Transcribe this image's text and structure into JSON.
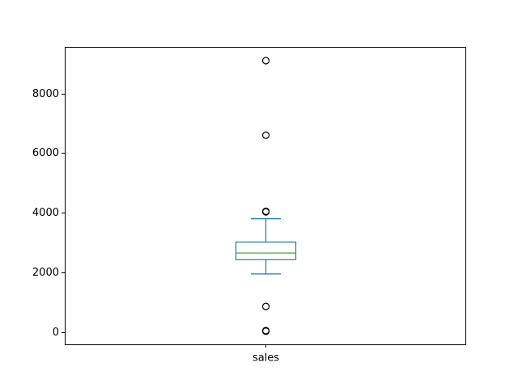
{
  "chart_data": {
    "type": "box",
    "categories": [
      "sales"
    ],
    "ylim": [
      -410,
      9560
    ],
    "y_ticks": [
      0,
      2000,
      4000,
      6000,
      8000
    ],
    "y_tick_labels": [
      "0",
      "2000",
      "4000",
      "6000",
      "8000"
    ],
    "boxes": [
      {
        "category": "sales",
        "whisker_low": 1950,
        "q1": 2430,
        "median": 2650,
        "q3": 3020,
        "whisker_high": 3800,
        "outliers": [
          9100,
          6600,
          4050,
          4030,
          860,
          50,
          30
        ]
      }
    ],
    "colors": {
      "box": "#1f77b4",
      "median": "#2ca02c",
      "outlier": "#000000",
      "axes": "#000000"
    },
    "grid": false,
    "legend": "none"
  }
}
